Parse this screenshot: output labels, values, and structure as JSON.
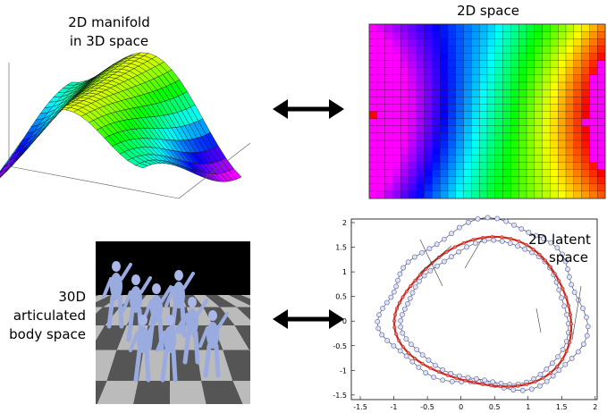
{
  "top_left": {
    "caption": [
      "2D manifold",
      "in 3D space"
    ]
  },
  "top_right": {
    "title": "2D space"
  },
  "bottom_left": {
    "caption": [
      "30D",
      "articulated",
      "body space"
    ]
  },
  "bottom_right": {
    "caption": [
      "2D latent",
      "space"
    ],
    "x_ticks": [
      "-1.5",
      "-1",
      "-0.5",
      "0",
      "0.5",
      "1",
      "1.5",
      "2"
    ],
    "y_ticks": [
      "2",
      "1.5",
      "1",
      "0.5",
      "0",
      "-0.5",
      "-1",
      "-1.5"
    ]
  }
}
